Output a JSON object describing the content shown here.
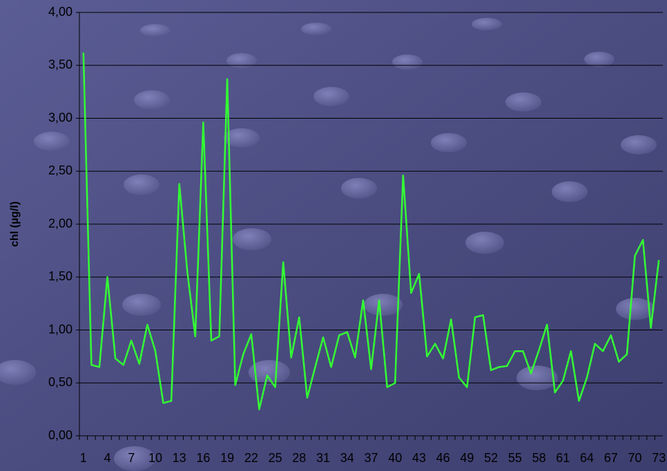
{
  "chart_data": {
    "type": "line",
    "y_label": "chl (µg/l)",
    "categories": [
      "1",
      null,
      null,
      "4",
      null,
      null,
      "7",
      null,
      null,
      "10",
      null,
      null,
      "13",
      null,
      null,
      "16",
      null,
      null,
      "19",
      null,
      null,
      "22",
      null,
      null,
      "25",
      null,
      null,
      "28",
      null,
      null,
      "31",
      null,
      null,
      "34",
      null,
      null,
      "37",
      null,
      null,
      "40",
      null,
      null,
      "43",
      null,
      null,
      "46",
      null,
      null,
      "49",
      null,
      null,
      "52",
      null,
      null,
      "55",
      null,
      null,
      "58",
      null,
      null,
      "61",
      null,
      null,
      "64",
      null,
      null,
      "67",
      null,
      null,
      "70",
      null,
      null,
      "73"
    ],
    "values": [
      3.62,
      0.67,
      0.65,
      1.5,
      0.73,
      0.67,
      0.9,
      0.68,
      1.05,
      0.8,
      0.31,
      0.33,
      2.38,
      1.55,
      0.94,
      2.96,
      0.9,
      0.94,
      3.37,
      0.48,
      0.77,
      0.96,
      0.25,
      0.57,
      0.46,
      1.64,
      0.74,
      1.12,
      0.36,
      0.65,
      0.93,
      0.65,
      0.95,
      0.98,
      0.74,
      1.28,
      0.63,
      1.28,
      0.46,
      0.5,
      2.46,
      1.35,
      1.53,
      0.75,
      0.87,
      0.73,
      1.1,
      0.55,
      0.46,
      1.12,
      1.14,
      0.62,
      0.65,
      0.66,
      0.8,
      0.8,
      0.59,
      0.81,
      1.05,
      0.41,
      0.52,
      0.8,
      0.33,
      0.55,
      0.87,
      0.8,
      0.95,
      0.7,
      0.77,
      1.7,
      1.85,
      1.02,
      1.66
    ],
    "color": "#33ff33",
    "ylim": [
      0,
      4
    ],
    "yticks": [
      {
        "value": 0,
        "label": "0,00"
      },
      {
        "value": 0.5,
        "label": "0,50"
      },
      {
        "value": 1,
        "label": "1,00"
      },
      {
        "value": 1.5,
        "label": "1,50"
      },
      {
        "value": 2,
        "label": "2,00"
      },
      {
        "value": 2.5,
        "label": "2,50"
      },
      {
        "value": 3,
        "label": "3,00"
      },
      {
        "value": 3.5,
        "label": "3,50"
      },
      {
        "value": 4,
        "label": "4,00"
      }
    ],
    "grid": true
  }
}
